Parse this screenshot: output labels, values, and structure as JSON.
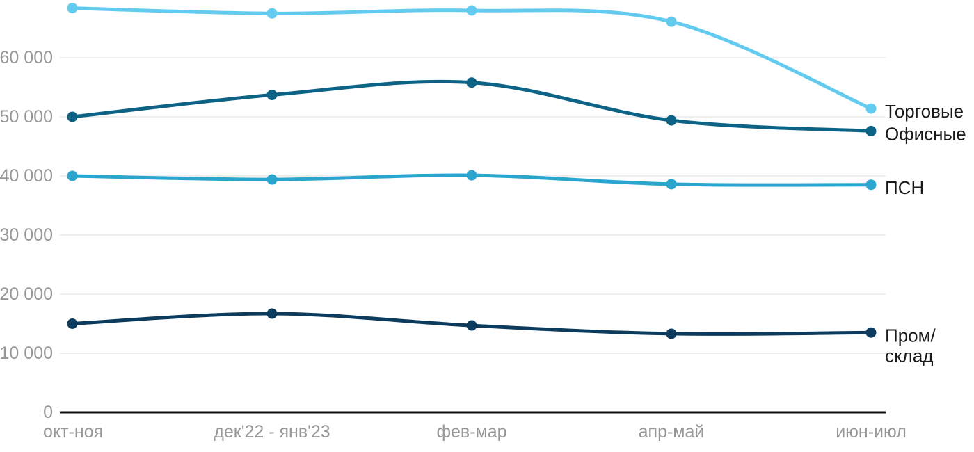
{
  "chart_data": {
    "type": "line",
    "title": "",
    "xlabel": "",
    "ylabel": "",
    "x_categories": [
      "окт-ноя",
      "дек'22 - янв'23",
      "фев-мар",
      "апр-май",
      "июн-июл"
    ],
    "y_ticks": [
      0,
      10000,
      20000,
      30000,
      40000,
      50000,
      60000
    ],
    "y_tick_labels": [
      "0",
      "10 000",
      "20 000",
      "30 000",
      "40 000",
      "50 000",
      "60 000"
    ],
    "ylim": [
      0,
      70000
    ],
    "grid": "horizontal-only",
    "legend_position": "end-of-line-labels-right",
    "series": [
      {
        "key": "torgovye",
        "name": "Торговые",
        "label_lines": [
          "Торговые"
        ],
        "color": "#63CBF0",
        "values": [
          68400,
          67500,
          68000,
          66100,
          51400
        ]
      },
      {
        "key": "ofisnye",
        "name": "Офисные",
        "label_lines": [
          "Офисные"
        ],
        "color": "#0D6385",
        "values": [
          50000,
          53700,
          55800,
          49400,
          47600
        ]
      },
      {
        "key": "psn",
        "name": "ПСН",
        "label_lines": [
          "ПСН"
        ],
        "color": "#29A5CE",
        "values": [
          40000,
          39400,
          40100,
          38600,
          38500
        ]
      },
      {
        "key": "prom-sklad",
        "name": "Пром/склад",
        "label_lines": [
          "Пром/",
          "склад"
        ],
        "color": "#0C3B5D",
        "values": [
          15000,
          16700,
          14700,
          13300,
          13500
        ]
      }
    ],
    "colors": {
      "background": "#ffffff",
      "gridline": "#e8e8e8",
      "axis_line": "#111111",
      "tick_text": "#979797",
      "series_label_text": "#1a1a1a"
    }
  }
}
